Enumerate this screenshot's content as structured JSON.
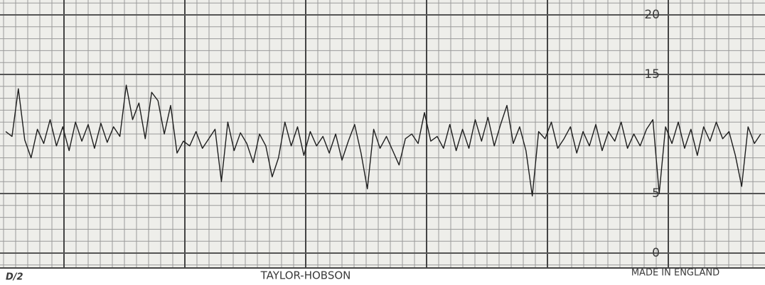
{
  "chart_data": {
    "type": "line",
    "annotations": [
      "D/2",
      "TAYLOR-HOBSON",
      "MADE IN ENGLAND"
    ],
    "ylim": [
      -1.25,
      21.25
    ],
    "yticks": [
      0,
      5,
      15,
      20
    ],
    "grid": true,
    "series": [
      {
        "color": "#1e1e1e",
        "values": [
          10.2,
          9.8,
          13.8,
          9.5,
          8.0,
          10.4,
          9.2,
          11.2,
          9.0,
          10.6,
          8.6,
          11.0,
          9.4,
          10.8,
          8.8,
          10.9,
          9.3,
          10.6,
          9.8,
          14.1,
          11.2,
          12.6,
          9.6,
          13.5,
          12.8,
          10.0,
          12.4,
          8.4,
          9.4,
          9.0,
          10.2,
          8.8,
          9.6,
          10.4,
          6.0,
          11.0,
          8.6,
          10.1,
          9.2,
          7.6,
          10.0,
          9.0,
          6.4,
          8.0,
          11.0,
          9.0,
          10.6,
          8.2,
          10.2,
          9.0,
          9.8,
          8.4,
          10.0,
          7.8,
          9.4,
          10.8,
          8.4,
          5.4,
          10.4,
          8.8,
          9.8,
          8.6,
          7.4,
          9.6,
          10.0,
          9.2,
          11.8,
          9.4,
          9.8,
          8.8,
          10.8,
          8.6,
          10.4,
          8.8,
          11.2,
          9.4,
          11.4,
          9.0,
          10.8,
          12.4,
          9.2,
          10.6,
          8.6,
          4.8,
          10.2,
          9.6,
          11.0,
          8.8,
          9.6,
          10.6,
          8.4,
          10.2,
          9.0,
          10.8,
          8.6,
          10.2,
          9.4,
          11.0,
          8.8,
          10.0,
          9.0,
          10.4,
          11.2,
          5.0,
          10.6,
          9.2,
          11.0,
          8.8,
          10.4,
          8.2,
          10.6,
          9.4,
          11.0,
          9.6,
          10.2,
          8.2,
          5.6,
          10.6,
          9.2,
          10.0
        ]
      }
    ]
  }
}
